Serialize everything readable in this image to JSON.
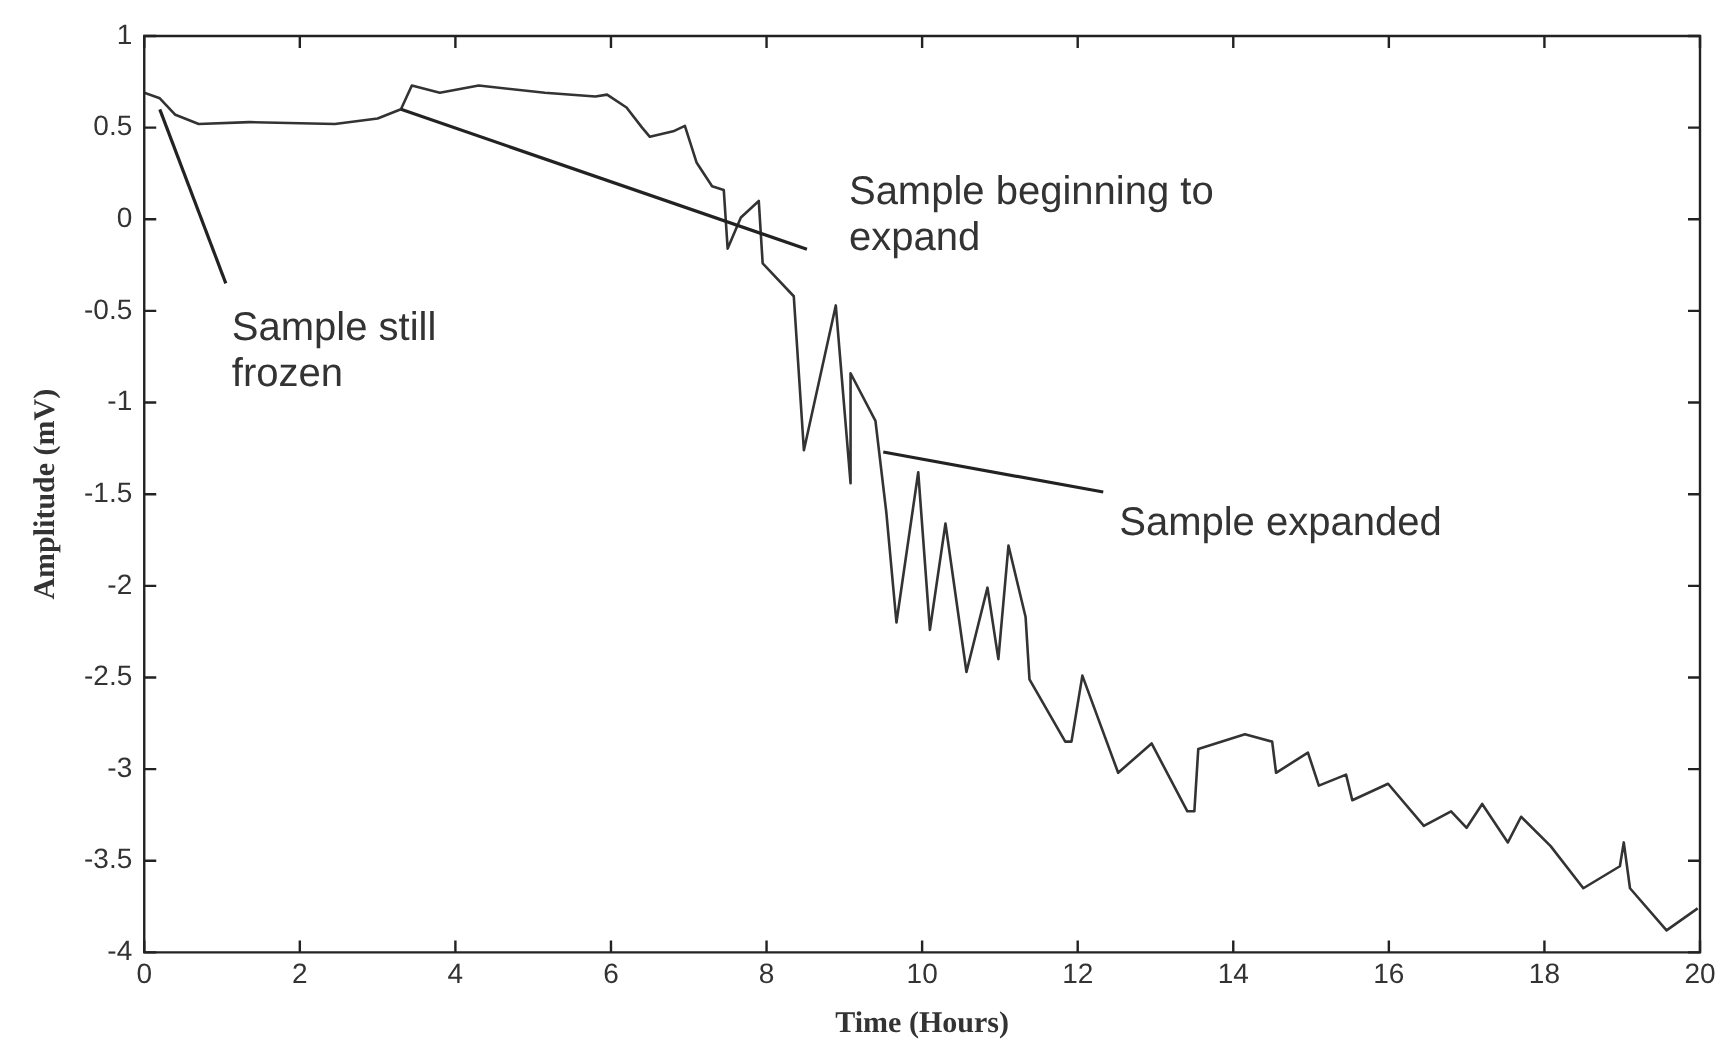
{
  "chart_data": {
    "type": "line",
    "xlabel": "Time (Hours)",
    "ylabel": "Amplitude (mV)",
    "xlim": [
      0,
      20
    ],
    "xticks": [
      0,
      2,
      4,
      6,
      8,
      10,
      12,
      14,
      16,
      18,
      20
    ],
    "ylim": [
      -4,
      1
    ],
    "yticks": [
      -4,
      -3.5,
      -3,
      -2.5,
      -2,
      -1.5,
      -1,
      -0.5,
      0,
      0.5,
      1
    ],
    "grid": false,
    "legend": false,
    "marker": "none",
    "line_style": "solid",
    "series": [
      {
        "color": "#333333",
        "x": [
          0,
          0.2,
          0.4,
          0.7,
          1.35,
          2.45,
          3,
          3.3,
          3.44,
          3.8,
          4.3,
          5.15,
          5.8,
          5.95,
          6.2,
          6.4,
          6.5,
          6.8,
          6.95,
          7.1,
          7.3,
          7.45,
          7.5,
          7.67,
          7.9,
          7.95,
          8.35,
          8.48,
          8.89,
          9.08,
          9.08,
          9.4,
          9.54,
          9.67,
          9.95,
          10.1,
          10.3,
          10.57,
          10.84,
          10.98,
          11.11,
          11.33,
          11.38,
          11.84,
          11.92,
          12.06,
          12.52,
          12.95,
          13.41,
          13.5,
          13.55,
          14.15,
          14.5,
          14.55,
          14.96,
          15.1,
          15.45,
          15.53,
          15.99,
          16.45,
          16.8,
          17,
          17.2,
          17.53,
          17.7,
          18.08,
          18.5,
          18.97,
          19.02,
          19.1,
          19.57,
          19.97
        ],
        "values": [
          0.69,
          0.66,
          0.57,
          0.52,
          0.53,
          0.52,
          0.55,
          0.6,
          0.73,
          0.69,
          0.73,
          0.69,
          0.67,
          0.68,
          0.61,
          0.5,
          0.45,
          0.48,
          0.51,
          0.31,
          0.18,
          0.16,
          -0.16,
          0.01,
          0.1,
          -0.24,
          -0.42,
          -1.26,
          -0.47,
          -1.44,
          -0.84,
          -1.1,
          -1.6,
          -2.2,
          -1.38,
          -2.24,
          -1.66,
          -2.47,
          -2.01,
          -2.4,
          -1.78,
          -2.17,
          -2.51,
          -2.85,
          -2.85,
          -2.49,
          -3.02,
          -2.86,
          -3.23,
          -3.23,
          -2.89,
          -2.81,
          -2.85,
          -3.02,
          -2.91,
          -3.09,
          -3.03,
          -3.17,
          -3.08,
          -3.31,
          -3.23,
          -3.32,
          -3.19,
          -3.4,
          -3.26,
          -3.42,
          -3.65,
          -3.53,
          -3.4,
          -3.65,
          -3.88,
          -3.76
        ]
      }
    ],
    "annotations": [
      {
        "text": "Sample still frozen",
        "x": 0.2,
        "y": 0.6
      },
      {
        "text": "Sample beginning to expand",
        "x": 3.3,
        "y": 0.6
      },
      {
        "text": "Sample expanded",
        "x": 9.5,
        "y": -1.27
      }
    ]
  }
}
